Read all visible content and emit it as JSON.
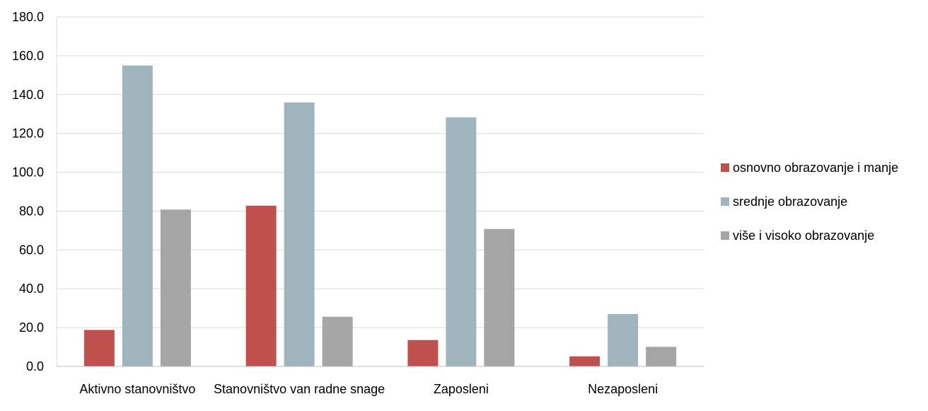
{
  "chart_data": {
    "type": "bar",
    "title": "",
    "xlabel": "",
    "ylabel": "",
    "ylim": [
      0,
      180
    ],
    "ytick_step": 20,
    "ytick_labels": [
      "0.0",
      "20.0",
      "40.0",
      "60.0",
      "80.0",
      "100.0",
      "120.0",
      "140.0",
      "160.0",
      "180.0"
    ],
    "grid": true,
    "legend_position": "right",
    "categories": [
      "Aktivno stanovništvo",
      "Stanovništvo van radne snage",
      "Zaposleni",
      "Nezaposleni"
    ],
    "series": [
      {
        "name": "osnovno obrazovanje i manje",
        "color": "#c0504d",
        "values": [
          18.8,
          82.8,
          13.6,
          5.2
        ]
      },
      {
        "name": "srednje obrazovanje",
        "color": "#9fb4bd",
        "values": [
          155.0,
          136.0,
          128.3,
          27.0
        ]
      },
      {
        "name": "više i visoko obrazovanje",
        "color": "#a5a5a5",
        "values": [
          80.8,
          25.6,
          70.8,
          10.1
        ]
      }
    ]
  }
}
